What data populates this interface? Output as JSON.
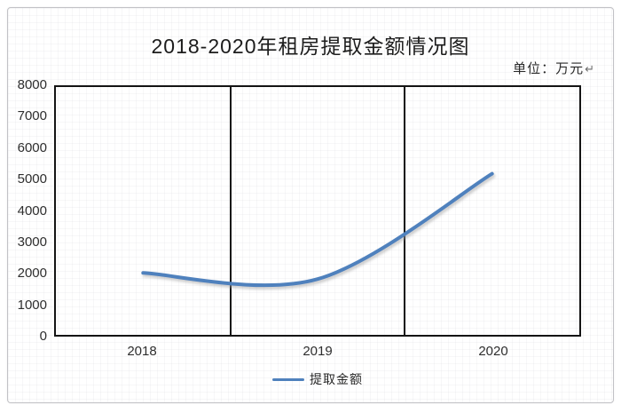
{
  "page": {
    "unit_label": "单位：万元",
    "return_mark": "↵"
  },
  "colors": {
    "line": "#4f81bd",
    "line_shadow": "#9a9a9a",
    "axis": "#141414",
    "frame_border": "#c2c2c6"
  },
  "chart_data": {
    "type": "line",
    "title": "2018-2020年租房提取金额情况图",
    "unit": "万元",
    "categories": [
      "2018",
      "2019",
      "2020"
    ],
    "series": [
      {
        "name": "提取金额",
        "values": [
          2000,
          1800,
          5200
        ]
      }
    ],
    "xlabel": "",
    "ylabel": "",
    "ylim": [
      0,
      8000
    ],
    "ytick_interval": 1000,
    "yticks": [
      "0",
      "1000",
      "2000",
      "3000",
      "4000",
      "5000",
      "6000",
      "7000",
      "8000"
    ],
    "smooth": true,
    "grid": false,
    "category_dividers": true,
    "legend_position": "bottom"
  },
  "legend": {
    "label": "提取金额"
  }
}
